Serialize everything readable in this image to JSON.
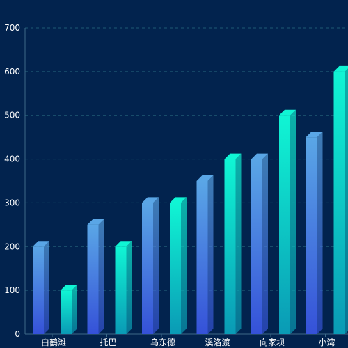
{
  "chart_data": {
    "type": "bar",
    "categories": [
      "白鹤滩",
      "托巴",
      "乌东德",
      "溪洛渡",
      "向家坝",
      "小湾"
    ],
    "series": [
      {
        "color_top": "#5aa6e6",
        "color_bottom": "#3551d8",
        "values": [
          200,
          250,
          300,
          350,
          400,
          450
        ]
      },
      {
        "color_top": "#10f5d4",
        "color_bottom": "#0a9ab5",
        "values": [
          100,
          200,
          300,
          400,
          500,
          600
        ]
      }
    ],
    "yticks": [
      "0",
      "100",
      "200",
      "300",
      "400",
      "500",
      "600",
      "700"
    ],
    "ylim": [
      0,
      700
    ],
    "grid": true,
    "colors": {
      "background": "#02234e",
      "grid": "#1f5a74",
      "axis": "#3d6a88",
      "label": "#ffffff"
    }
  }
}
